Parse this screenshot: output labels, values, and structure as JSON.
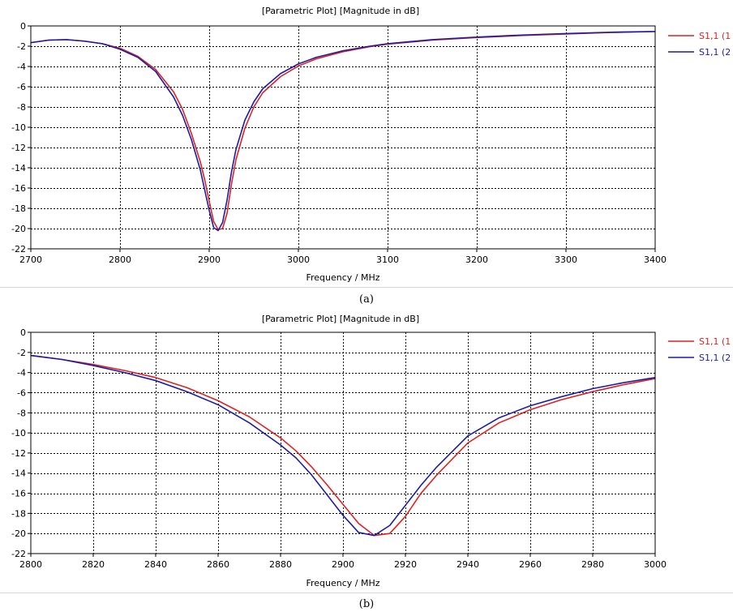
{
  "chart_data": [
    {
      "type": "line",
      "title": "[Parametric Plot] [Magnitude in dB]",
      "xlabel": "Frequency / MHz",
      "ylabel": "",
      "xlim": [
        2700,
        3400
      ],
      "ylim": [
        -22,
        0
      ],
      "xticks": [
        2700,
        2800,
        2900,
        3000,
        3100,
        3200,
        3300,
        3400
      ],
      "yticks": [
        0,
        -2,
        -4,
        -6,
        -8,
        -10,
        -12,
        -14,
        -16,
        -18,
        -20,
        -22
      ],
      "grid": true,
      "legend_position": "right",
      "caption": "(a)",
      "series": [
        {
          "name": "S1,1 (1",
          "color": "#dd2222",
          "x": [
            2700,
            2720,
            2740,
            2760,
            2780,
            2800,
            2820,
            2840,
            2860,
            2870,
            2880,
            2890,
            2895,
            2900,
            2905,
            2910,
            2915,
            2920,
            2925,
            2930,
            2940,
            2950,
            2960,
            2980,
            3000,
            3020,
            3050,
            3080,
            3100,
            3150,
            3200,
            3250,
            3300,
            3350,
            3400
          ],
          "y": [
            -1.65,
            -1.4,
            -1.35,
            -1.5,
            -1.75,
            -2.2,
            -3.0,
            -4.3,
            -6.5,
            -8.2,
            -10.6,
            -13.4,
            -15.2,
            -17.3,
            -19.3,
            -20.1,
            -20.0,
            -18.5,
            -15.6,
            -13.2,
            -10.1,
            -8.0,
            -6.6,
            -5.0,
            -3.95,
            -3.25,
            -2.55,
            -2.05,
            -1.8,
            -1.4,
            -1.15,
            -0.95,
            -0.8,
            -0.65,
            -0.55
          ]
        },
        {
          "name": "S1,1 (2",
          "color": "#1c1ca8",
          "x": [
            2700,
            2720,
            2740,
            2760,
            2780,
            2800,
            2820,
            2840,
            2860,
            2870,
            2880,
            2890,
            2895,
            2900,
            2905,
            2910,
            2915,
            2920,
            2925,
            2930,
            2940,
            2950,
            2960,
            2980,
            3000,
            3020,
            3050,
            3080,
            3100,
            3150,
            3200,
            3250,
            3300,
            3350,
            3400
          ],
          "y": [
            -1.65,
            -1.4,
            -1.35,
            -1.5,
            -1.75,
            -2.3,
            -3.1,
            -4.5,
            -7.0,
            -8.8,
            -11.2,
            -14.2,
            -16.2,
            -18.2,
            -19.9,
            -20.2,
            -19.4,
            -17.2,
            -14.4,
            -12.2,
            -9.3,
            -7.5,
            -6.2,
            -4.7,
            -3.75,
            -3.1,
            -2.45,
            -2.0,
            -1.75,
            -1.35,
            -1.1,
            -0.9,
            -0.75,
            -0.62,
            -0.55
          ]
        }
      ]
    },
    {
      "type": "line",
      "title": "[Parametric Plot] [Magnitude in dB]",
      "xlabel": "Frequency / MHz",
      "ylabel": "",
      "xlim": [
        2800,
        3000
      ],
      "ylim": [
        -22,
        0
      ],
      "xticks": [
        2800,
        2820,
        2840,
        2860,
        2880,
        2900,
        2920,
        2940,
        2960,
        2980,
        3000
      ],
      "yticks": [
        0,
        -2,
        -4,
        -6,
        -8,
        -10,
        -12,
        -14,
        -16,
        -18,
        -20,
        -22
      ],
      "grid": true,
      "legend_position": "right",
      "caption": "(b)",
      "series": [
        {
          "name": "S1,1 (1",
          "color": "#dd2222",
          "x": [
            2800,
            2810,
            2820,
            2830,
            2840,
            2850,
            2860,
            2870,
            2880,
            2885,
            2890,
            2895,
            2900,
            2905,
            2910,
            2915,
            2920,
            2925,
            2930,
            2940,
            2950,
            2960,
            2970,
            2980,
            2990,
            3000
          ],
          "y": [
            -2.3,
            -2.7,
            -3.2,
            -3.8,
            -4.5,
            -5.5,
            -6.8,
            -8.4,
            -10.5,
            -11.8,
            -13.4,
            -15.2,
            -17.1,
            -19.0,
            -20.2,
            -20.0,
            -18.3,
            -16.0,
            -14.2,
            -11.0,
            -9.0,
            -7.7,
            -6.7,
            -5.9,
            -5.2,
            -4.6
          ]
        },
        {
          "name": "S1,1 (2",
          "color": "#1c1ca8",
          "x": [
            2800,
            2810,
            2820,
            2830,
            2840,
            2850,
            2860,
            2870,
            2880,
            2885,
            2890,
            2895,
            2900,
            2905,
            2910,
            2915,
            2920,
            2925,
            2930,
            2940,
            2950,
            2960,
            2970,
            2980,
            2990,
            3000
          ],
          "y": [
            -2.3,
            -2.7,
            -3.3,
            -4.0,
            -4.8,
            -5.9,
            -7.2,
            -9.0,
            -11.2,
            -12.5,
            -14.2,
            -16.2,
            -18.2,
            -19.9,
            -20.2,
            -19.2,
            -17.2,
            -15.2,
            -13.4,
            -10.3,
            -8.5,
            -7.3,
            -6.4,
            -5.6,
            -5.0,
            -4.5
          ]
        }
      ]
    }
  ]
}
